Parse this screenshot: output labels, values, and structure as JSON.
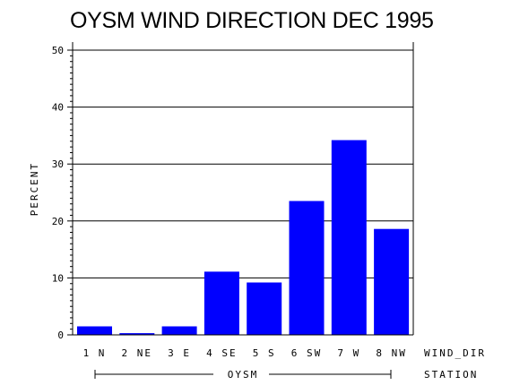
{
  "chart_data": {
    "type": "bar",
    "title": "OYSM WIND DIRECTION DEC 1995",
    "ylabel": "PERCENT",
    "xlabel": "WIND_DIR",
    "group_axis_label": "STATION",
    "group_label": "OYSM",
    "categories": [
      "1 N",
      "2 NE",
      "3 E",
      "4 SE",
      "5 S",
      "6 SW",
      "7 W",
      "8 NW"
    ],
    "values": [
      1.5,
      0.3,
      1.5,
      11.1,
      9.2,
      23.5,
      34.2,
      18.6
    ],
    "ylim": [
      0,
      50
    ],
    "yticks": [
      "0",
      "10",
      "20",
      "30",
      "40",
      "50"
    ],
    "grid": true,
    "bar_color": "#0000ff"
  }
}
